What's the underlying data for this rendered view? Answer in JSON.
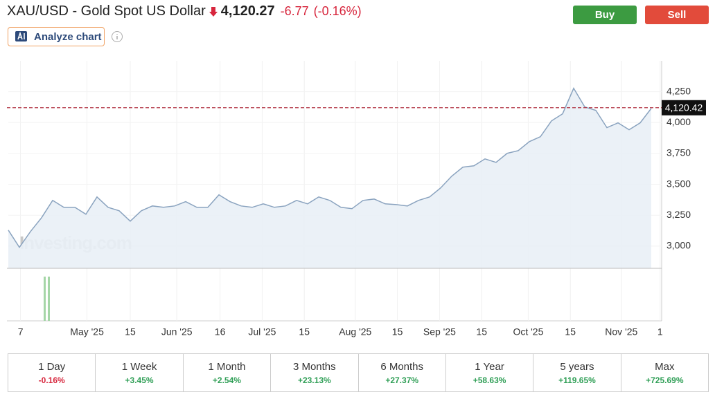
{
  "header": {
    "title": "XAU/USD - Gold Spot US Dollar",
    "price": "4,120.27",
    "change": "-6.77",
    "change_pct": "(-0.16%)",
    "analyze": "Analyze chart",
    "buy": "Buy",
    "sell": "Sell"
  },
  "chart_data": {
    "type": "line",
    "watermark": "Investing.com",
    "color": "#8aa3bf",
    "fill": "#e9eff6",
    "values": [
      3129,
      2990,
      3118,
      3230,
      3370,
      3314,
      3314,
      3258,
      3398,
      3314,
      3286,
      3202,
      3286,
      3325,
      3314,
      3325,
      3360,
      3314,
      3314,
      3415,
      3360,
      3325,
      3314,
      3342,
      3314,
      3325,
      3370,
      3342,
      3398,
      3370,
      3314,
      3303,
      3370,
      3381,
      3342,
      3336,
      3325,
      3370,
      3398,
      3471,
      3566,
      3639,
      3650,
      3706,
      3678,
      3751,
      3773,
      3846,
      3886,
      4014,
      4071,
      4278,
      4127,
      4099,
      3959,
      3998,
      3942,
      3998,
      4115
    ],
    "xlim": [
      0,
      58
    ],
    "xticks": [
      {
        "value": 1.1,
        "label": "7"
      },
      {
        "value": 7.1,
        "label": "May '25"
      },
      {
        "value": 11,
        "label": "15"
      },
      {
        "value": 15.2,
        "label": "Jun '25"
      },
      {
        "value": 19.1,
        "label": "16"
      },
      {
        "value": 22.9,
        "label": "Jul '25"
      },
      {
        "value": 26.7,
        "label": "15"
      },
      {
        "value": 31.3,
        "label": "Aug '25"
      },
      {
        "value": 35.1,
        "label": "15"
      },
      {
        "value": 38.9,
        "label": "Sep '25"
      },
      {
        "value": 42.7,
        "label": "15"
      },
      {
        "value": 46.9,
        "label": "Oct '25"
      },
      {
        "value": 50.7,
        "label": "15"
      },
      {
        "value": 55.3,
        "label": "Nov '25"
      },
      {
        "value": 58.8,
        "label": "1"
      }
    ],
    "ylim": [
      2820,
      4500
    ],
    "yticks": [
      {
        "value": 3000,
        "label": "3,000"
      },
      {
        "value": 3250,
        "label": "3,250"
      },
      {
        "value": 3500,
        "label": "3,500"
      },
      {
        "value": 3750,
        "label": "3,750"
      },
      {
        "value": 4000,
        "label": "4,000"
      },
      {
        "value": 4250,
        "label": "4,250"
      }
    ],
    "current": {
      "value": 4120.42,
      "label": "4,120.42",
      "color": "#b03040"
    },
    "grid": true
  },
  "periods": [
    {
      "name": "1 Day",
      "change": "-0.16%",
      "color": "#d7263d"
    },
    {
      "name": "1 Week",
      "change": "+3.45%",
      "color": "#2e9e55"
    },
    {
      "name": "1 Month",
      "change": "+2.54%",
      "color": "#2e9e55"
    },
    {
      "name": "3 Months",
      "change": "+23.13%",
      "color": "#2e9e55"
    },
    {
      "name": "6 Months",
      "change": "+27.37%",
      "color": "#2e9e55"
    },
    {
      "name": "1 Year",
      "change": "+58.63%",
      "color": "#2e9e55"
    },
    {
      "name": "5 years",
      "change": "+119.65%",
      "color": "#2e9e55"
    },
    {
      "name": "Max",
      "change": "+725.69%",
      "color": "#2e9e55"
    }
  ]
}
